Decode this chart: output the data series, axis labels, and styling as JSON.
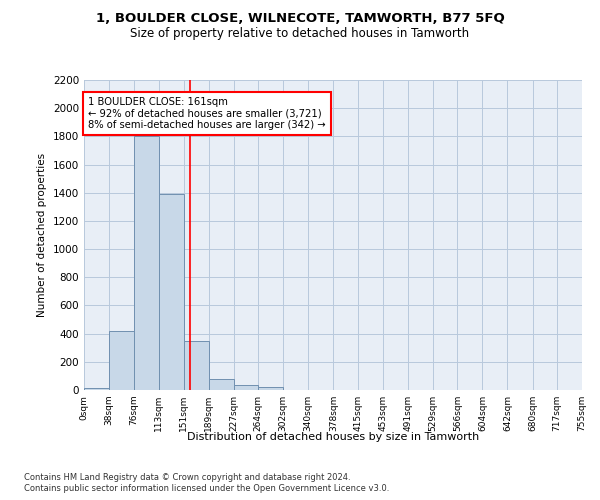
{
  "title": "1, BOULDER CLOSE, WILNECOTE, TAMWORTH, B77 5FQ",
  "subtitle": "Size of property relative to detached houses in Tamworth",
  "xlabel": "Distribution of detached houses by size in Tamworth",
  "ylabel": "Number of detached properties",
  "bar_color": "#c8d8e8",
  "bar_edge_color": "#7090b0",
  "grid_color": "#b8c8dc",
  "background_color": "#e8eef6",
  "bin_edges": [
    0,
    38,
    76,
    113,
    151,
    189,
    227,
    264,
    302,
    340,
    378,
    415,
    453,
    491,
    529,
    566,
    604,
    642,
    680,
    717,
    755
  ],
  "bin_labels": [
    "0sqm",
    "38sqm",
    "76sqm",
    "113sqm",
    "151sqm",
    "189sqm",
    "227sqm",
    "264sqm",
    "302sqm",
    "340sqm",
    "378sqm",
    "415sqm",
    "453sqm",
    "491sqm",
    "529sqm",
    "566sqm",
    "604sqm",
    "642sqm",
    "680sqm",
    "717sqm",
    "755sqm"
  ],
  "bar_heights": [
    15,
    420,
    1800,
    1390,
    350,
    80,
    35,
    20,
    0,
    0,
    0,
    0,
    0,
    0,
    0,
    0,
    0,
    0,
    0,
    0
  ],
  "property_line_x": 161,
  "annotation_text": "1 BOULDER CLOSE: 161sqm\n← 92% of detached houses are smaller (3,721)\n8% of semi-detached houses are larger (342) →",
  "annotation_box_color": "white",
  "annotation_box_edge_color": "red",
  "vline_color": "red",
  "ylim": [
    0,
    2200
  ],
  "yticks": [
    0,
    200,
    400,
    600,
    800,
    1000,
    1200,
    1400,
    1600,
    1800,
    2000,
    2200
  ],
  "footer1": "Contains HM Land Registry data © Crown copyright and database right 2024.",
  "footer2": "Contains public sector information licensed under the Open Government Licence v3.0."
}
